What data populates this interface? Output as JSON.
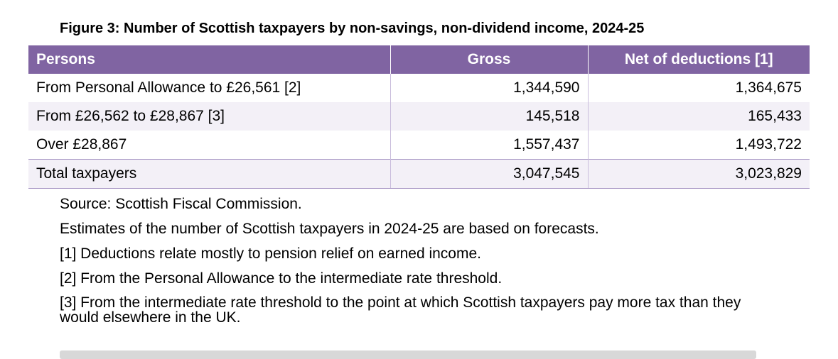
{
  "figure": {
    "title": "Figure 3: Number of Scottish taxpayers by non-savings, non-dividend income, 2024-25"
  },
  "table": {
    "headers": [
      "Persons",
      "Gross",
      "Net of deductions [1]"
    ],
    "rows": [
      {
        "label": "From Personal Allowance to £26,561 [2]",
        "gross": "1,344,590",
        "net": "1,364,675"
      },
      {
        "label": "From £26,562 to £28,867 [3]",
        "gross": "145,518",
        "net": "165,433"
      },
      {
        "label": "Over £28,867",
        "gross": "1,557,437",
        "net": "1,493,722"
      },
      {
        "label": "Total taxpayers",
        "gross": "3,047,545",
        "net": "3,023,829"
      }
    ]
  },
  "notes": [
    "Source: Scottish Fiscal Commission.",
    "Estimates of the number of Scottish taxpayers in 2024-25 are based on forecasts.",
    "[1] Deductions relate mostly to pension relief on earned income.",
    "[2] From the Personal Allowance to the intermediate rate threshold.",
    "[3] From the intermediate rate threshold to the point at which Scottish taxpayers pay more tax than they would elsewhere in the UK."
  ],
  "colors": {
    "header_bg": "#8064a2",
    "row_shade": "#f3f0f7"
  }
}
